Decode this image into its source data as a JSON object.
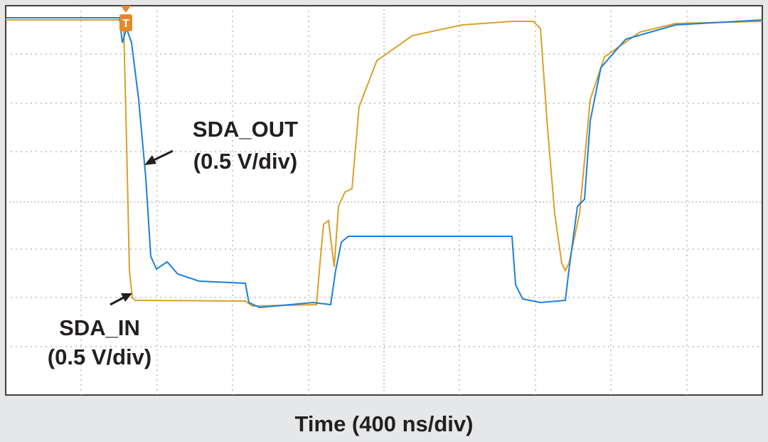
{
  "xlabel": "Time (400 ns/div)",
  "annotations": [
    {
      "name": "SDA_OUT",
      "scale": "(0.5 V/div)"
    },
    {
      "name": "SDA_IN",
      "scale": "(0.5 V/div)"
    }
  ],
  "trigger": "T"
}
